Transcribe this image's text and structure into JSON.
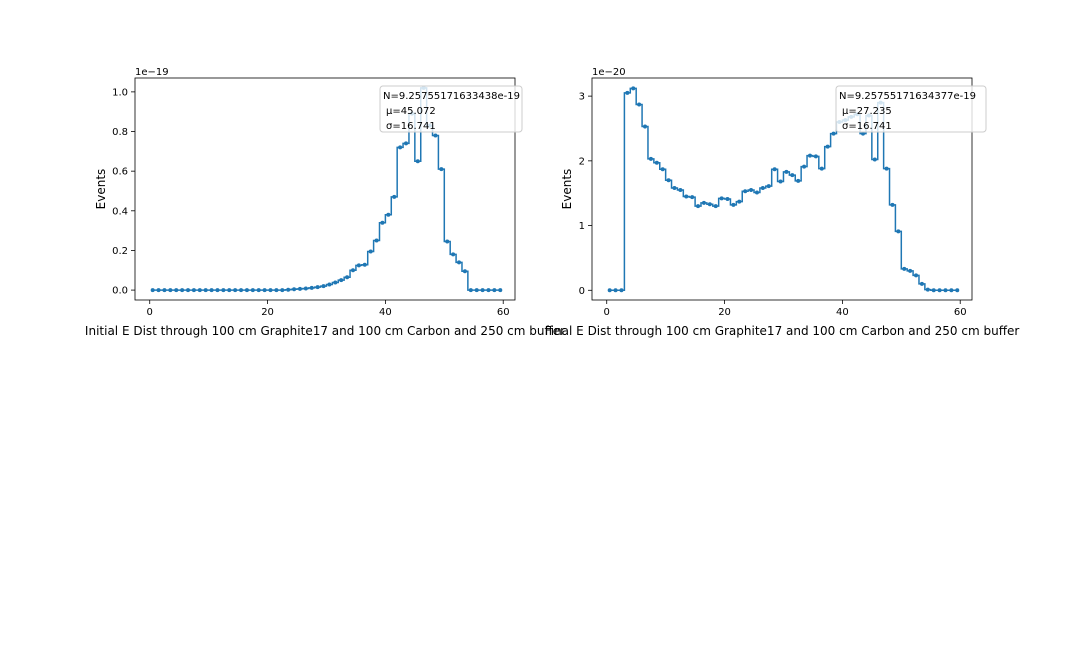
{
  "chart_data": [
    {
      "type": "line",
      "drawstyle": "steps-mid",
      "marker": "point",
      "color": "#1f77b4",
      "xlabel": "Initial E Dist through 100 cm Graphite17 and 100 cm Carbon and 250 cm buffer",
      "ylabel": "Events",
      "y_offset_text": "1e−19",
      "xlim": [
        -2.5,
        62
      ],
      "ylim": [
        -0.05,
        1.07
      ],
      "xticks": [
        0,
        20,
        40,
        60
      ],
      "xtick_labels": [
        "0",
        "20",
        "40",
        "60"
      ],
      "yticks": [
        0.0,
        0.2,
        0.4,
        0.6,
        0.8,
        1.0
      ],
      "ytick_labels": [
        "0.0",
        "0.2",
        "0.4",
        "0.6",
        "0.8",
        "1.0"
      ],
      "legend_location": "upper-right",
      "legend_lines": [
        "N=9.25755171633438e-19",
        "μ=45.072",
        "σ=16.741"
      ],
      "x": [
        0.5,
        1.5,
        2.5,
        3.5,
        4.5,
        5.5,
        6.5,
        7.5,
        8.5,
        9.5,
        10.5,
        11.5,
        12.5,
        13.5,
        14.5,
        15.5,
        16.5,
        17.5,
        18.5,
        19.5,
        20.5,
        21.5,
        22.5,
        23.5,
        24.5,
        25.5,
        26.5,
        27.5,
        28.5,
        29.5,
        30.5,
        31.5,
        32.5,
        33.5,
        34.5,
        35.5,
        36.5,
        37.5,
        38.5,
        39.5,
        40.5,
        41.5,
        42.5,
        43.5,
        44.5,
        45.5,
        46.5,
        47.5,
        48.5,
        49.5,
        50.5,
        51.5,
        52.5,
        53.5,
        54.5,
        55.5,
        56.5,
        57.5,
        58.5,
        59.5
      ],
      "y": [
        0,
        0,
        0,
        0,
        0,
        0,
        0,
        0,
        0,
        0,
        0,
        0,
        0,
        0,
        0,
        0,
        0,
        0,
        0,
        0,
        0,
        0,
        0,
        0.002,
        0.004,
        0.006,
        0.008,
        0.011,
        0.015,
        0.02,
        0.028,
        0.038,
        0.05,
        0.065,
        0.1,
        0.125,
        0.128,
        0.195,
        0.25,
        0.34,
        0.38,
        0.47,
        0.72,
        0.74,
        0.89,
        0.65,
        1.02,
        0.83,
        0.78,
        0.61,
        0.245,
        0.18,
        0.14,
        0.095,
        0,
        0,
        0,
        0,
        0,
        0
      ]
    },
    {
      "type": "line",
      "drawstyle": "steps-mid",
      "marker": "point",
      "color": "#1f77b4",
      "xlabel": "Final E Dist through 100 cm Graphite17 and 100 cm Carbon and 250 cm buffer",
      "ylabel": "Events",
      "y_offset_text": "1e−20",
      "xlim": [
        -2.5,
        62
      ],
      "ylim": [
        -0.15,
        3.28
      ],
      "xticks": [
        0,
        20,
        40,
        60
      ],
      "xtick_labels": [
        "0",
        "20",
        "40",
        "60"
      ],
      "yticks": [
        0,
        1,
        2,
        3
      ],
      "ytick_labels": [
        "0",
        "1",
        "2",
        "3"
      ],
      "legend_location": "upper-right",
      "legend_lines": [
        "N=9.25755171634377e-19",
        "μ=27.235",
        "σ=16.741"
      ],
      "x": [
        0.5,
        1.5,
        2.5,
        3.5,
        4.5,
        5.5,
        6.5,
        7.5,
        8.5,
        9.5,
        10.5,
        11.5,
        12.5,
        13.5,
        14.5,
        15.5,
        16.5,
        17.5,
        18.5,
        19.5,
        20.5,
        21.5,
        22.5,
        23.5,
        24.5,
        25.5,
        26.5,
        27.5,
        28.5,
        29.5,
        30.5,
        31.5,
        32.5,
        33.5,
        34.5,
        35.5,
        36.5,
        37.5,
        38.5,
        39.5,
        40.5,
        41.5,
        42.5,
        43.5,
        44.5,
        45.5,
        46.5,
        47.5,
        48.5,
        49.5,
        50.5,
        51.5,
        52.5,
        53.5,
        54.5,
        55.5,
        56.5,
        57.5,
        58.5,
        59.5
      ],
      "y": [
        0,
        0,
        0,
        3.05,
        3.12,
        2.87,
        2.53,
        2.03,
        1.97,
        1.87,
        1.7,
        1.58,
        1.55,
        1.45,
        1.44,
        1.3,
        1.35,
        1.33,
        1.3,
        1.42,
        1.41,
        1.32,
        1.37,
        1.53,
        1.55,
        1.51,
        1.58,
        1.61,
        1.87,
        1.68,
        1.83,
        1.78,
        1.69,
        1.91,
        2.08,
        2.07,
        1.88,
        2.22,
        2.42,
        2.6,
        2.63,
        2.68,
        2.72,
        2.42,
        2.7,
        2.02,
        2.9,
        1.88,
        1.32,
        0.91,
        0.33,
        0.3,
        0.23,
        0.1,
        0.01,
        0,
        0,
        0,
        0,
        0
      ]
    }
  ]
}
